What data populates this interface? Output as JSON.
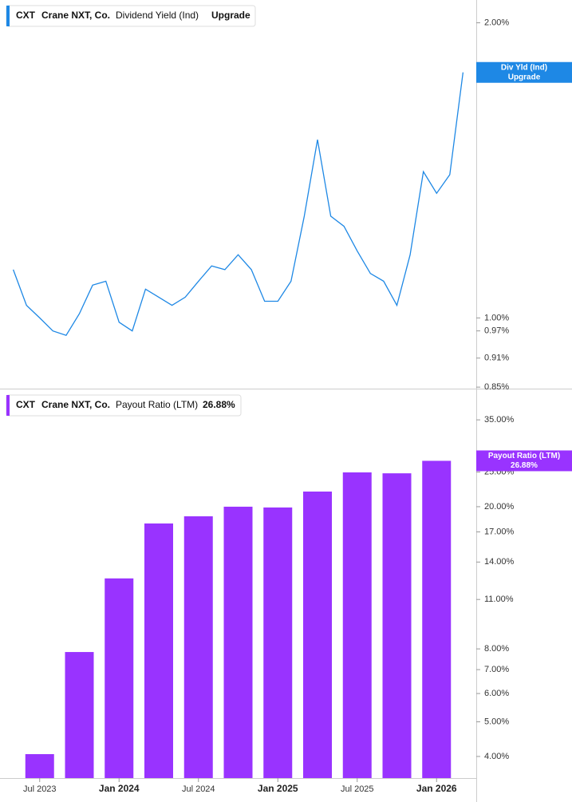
{
  "chart_data": [
    {
      "type": "line",
      "ticker": "CXT",
      "company": "Crane NXT, Co.",
      "title": "Dividend Yield (Ind)",
      "badge": "Upgrade",
      "tag": {
        "name": "Div Yld (Ind)",
        "value": "Upgrade"
      },
      "log_y": true,
      "color": "#1e88e5",
      "xlim": [
        "2023-04",
        "2026-04"
      ],
      "x": [
        "2023-05",
        "2023-06",
        "2023-07",
        "2023-08",
        "2023-09",
        "2023-10",
        "2023-11",
        "2023-12",
        "2024-01",
        "2024-02",
        "2024-03",
        "2024-04",
        "2024-05",
        "2024-06",
        "2024-07",
        "2024-08",
        "2024-09",
        "2024-10",
        "2024-11",
        "2024-12",
        "2025-01",
        "2025-02",
        "2025-03",
        "2025-04",
        "2025-05",
        "2025-06",
        "2025-07",
        "2025-08",
        "2025-09",
        "2025-10",
        "2025-11",
        "2025-12",
        "2026-01",
        "2026-02",
        "2026-03"
      ],
      "values": [
        1.12,
        1.03,
        1.0,
        0.97,
        0.96,
        1.01,
        1.08,
        1.09,
        0.99,
        0.97,
        1.07,
        1.05,
        1.03,
        1.05,
        1.09,
        1.13,
        1.12,
        1.16,
        1.12,
        1.04,
        1.04,
        1.09,
        1.27,
        1.52,
        1.27,
        1.24,
        1.17,
        1.11,
        1.09,
        1.03,
        1.16,
        1.41,
        1.34,
        1.4,
        1.78
      ],
      "ylim": [
        0.847,
        2.11
      ],
      "yticks": [
        {
          "value": 2,
          "label": "2.00%"
        },
        {
          "value": 1,
          "label": "1.00%"
        },
        {
          "value": 0.97,
          "label": "0.97%"
        },
        {
          "value": 0.91,
          "label": "0.91%"
        },
        {
          "value": 0.85,
          "label": "0.85%"
        }
      ]
    },
    {
      "type": "bar",
      "ticker": "CXT",
      "company": "Crane NXT, Co.",
      "title": "Payout Ratio (LTM)",
      "tag": {
        "name": "Payout Ratio (LTM)"
      },
      "log_y": true,
      "color": "#9933ff",
      "xlim": [
        "2023-04",
        "2026-04"
      ],
      "x": [
        "2023-07",
        "2023-10",
        "2024-01",
        "2024-04",
        "2024-07",
        "2024-10",
        "2025-01",
        "2025-04",
        "2025-07",
        "2025-10",
        "2026-01"
      ],
      "values": [
        4.06,
        7.84,
        12.6,
        17.95,
        18.8,
        20.0,
        19.9,
        22.05,
        24.95,
        24.8,
        26.88
      ],
      "value_labels": [
        null,
        null,
        null,
        null,
        null,
        null,
        null,
        null,
        null,
        null,
        "26.88%"
      ],
      "ylim": [
        3.48,
        42.8
      ],
      "yticks": [
        {
          "value": 35,
          "label": "35.00%"
        },
        {
          "value": 25,
          "label": "25.00%"
        },
        {
          "value": 20,
          "label": "20.00%"
        },
        {
          "value": 17,
          "label": "17.00%"
        },
        {
          "value": 14,
          "label": "14.00%"
        },
        {
          "value": 11,
          "label": "11.00%"
        },
        {
          "value": 8,
          "label": "8.00%"
        },
        {
          "value": 7,
          "label": "7.00%"
        },
        {
          "value": 6,
          "label": "6.00%"
        },
        {
          "value": 5,
          "label": "5.00%"
        },
        {
          "value": 4,
          "label": "4.00%"
        }
      ],
      "xticks": [
        {
          "value": "2023-07",
          "label": "Jul 2023"
        },
        {
          "value": "2024-01",
          "label": "Jan 2024"
        },
        {
          "value": "2024-07",
          "label": "Jul 2024"
        },
        {
          "value": "2025-01",
          "label": "Jan 2025"
        },
        {
          "value": "2025-07",
          "label": "Jul 2025"
        },
        {
          "value": "2026-01",
          "label": "Jan 2026"
        }
      ]
    }
  ]
}
